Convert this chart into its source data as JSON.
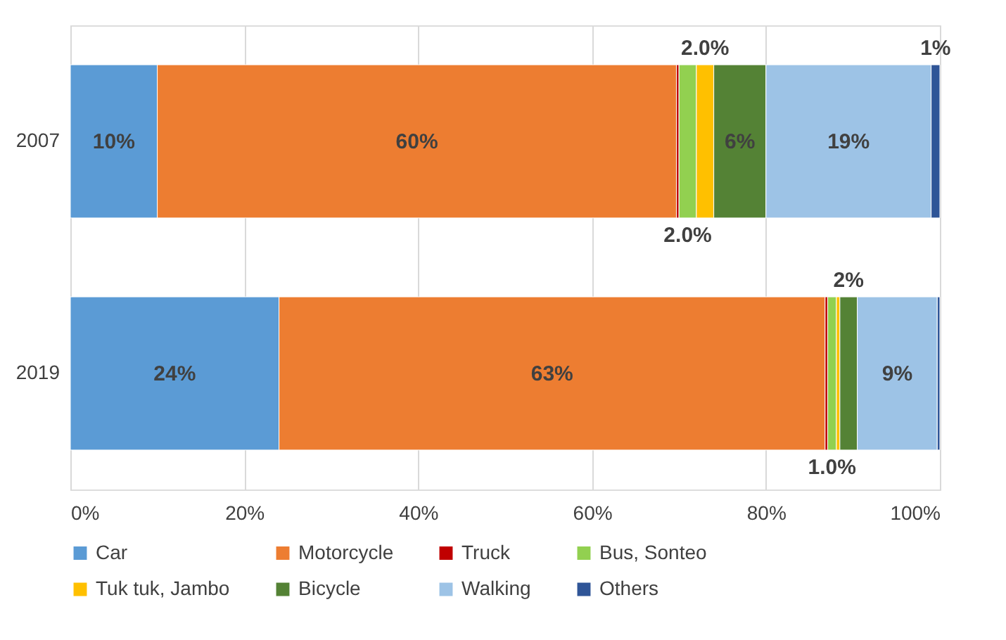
{
  "chart_data": {
    "type": "bar",
    "orientation": "horizontal",
    "stacked": true,
    "categories": [
      "2007",
      "2019"
    ],
    "series": [
      {
        "name": "Car",
        "color": "#5b9bd5",
        "values": [
          10,
          24
        ],
        "value_labels": [
          "10%",
          "24%"
        ]
      },
      {
        "name": "Motorcycle",
        "color": "#ed7d31",
        "values": [
          59.7,
          62.8
        ],
        "value_labels": [
          "60%",
          "63%"
        ]
      },
      {
        "name": "Truck",
        "color": "#c00000",
        "values": [
          0.3,
          0.3
        ],
        "value_labels": [
          null,
          null
        ]
      },
      {
        "name": "Bus, Sonteo",
        "color": "#92d050",
        "values": [
          2.0,
          1.0
        ],
        "value_labels": [
          "2.0%",
          "1.0%"
        ]
      },
      {
        "name": "Tuk tuk, Jambo",
        "color": "#ffc000",
        "values": [
          2.0,
          0.4
        ],
        "value_labels": [
          "2.0%",
          null
        ]
      },
      {
        "name": "Bicycle",
        "color": "#548235",
        "values": [
          6,
          2
        ],
        "value_labels": [
          "6%",
          "2%"
        ]
      },
      {
        "name": "Walking",
        "color": "#9dc3e6",
        "values": [
          19,
          9.2
        ],
        "value_labels": [
          "19%",
          "9%"
        ]
      },
      {
        "name": "Others",
        "color": "#2f5597",
        "values": [
          1,
          0.3
        ],
        "value_labels": [
          "1%",
          null
        ]
      }
    ],
    "xlim": [
      0,
      100
    ],
    "xticks": [
      {
        "value": 0,
        "label": "0%"
      },
      {
        "value": 20,
        "label": "20%"
      },
      {
        "value": 40,
        "label": "40%"
      },
      {
        "value": 60,
        "label": "60%"
      },
      {
        "value": 80,
        "label": "80%"
      },
      {
        "value": 100,
        "label": "100%"
      }
    ],
    "grid": "x",
    "legend": "bottom"
  }
}
